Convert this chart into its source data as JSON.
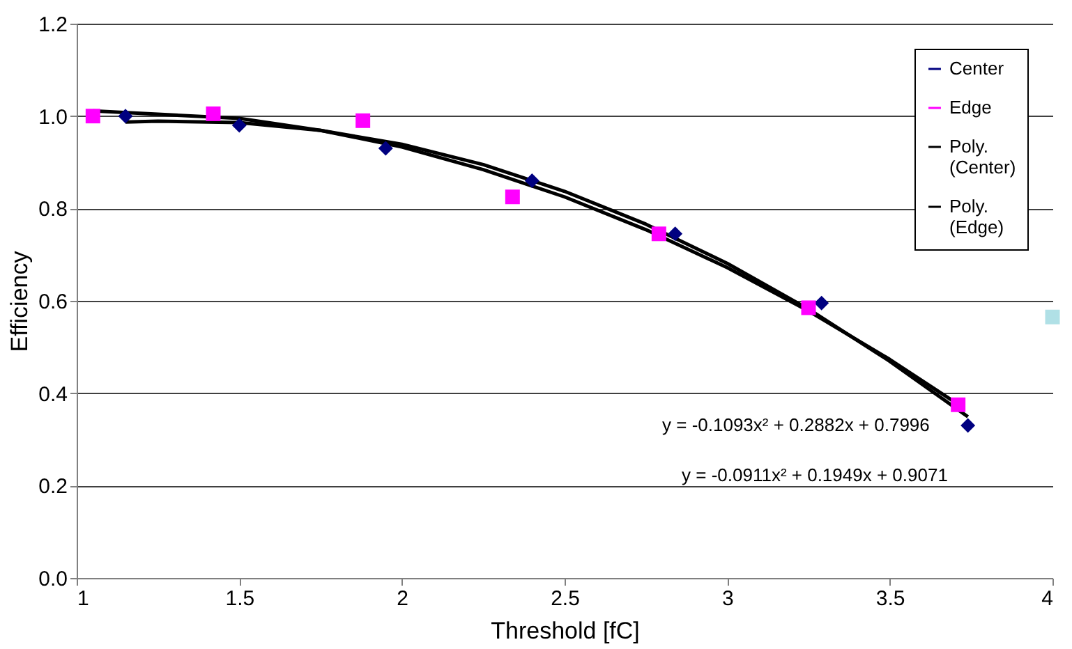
{
  "chart_data": {
    "type": "scatter",
    "xlabel": "Threshold  [fC]",
    "ylabel": "Efficiency",
    "xlim": [
      1,
      4
    ],
    "xticks": [
      1,
      1.5,
      2,
      2.5,
      3,
      3.5,
      4
    ],
    "ylim": [
      0,
      1.2
    ],
    "yticks": [
      {
        "value": 0,
        "label": "0.0"
      },
      {
        "value": 0.2,
        "label": "0.2"
      },
      {
        "value": 0.4,
        "label": "0.4"
      },
      {
        "value": 0.6,
        "label": "0.6"
      },
      {
        "value": 0.8,
        "label": "0.8"
      },
      {
        "value": 1,
        "label": "1.0"
      },
      {
        "value": 1.2,
        "label": "1.2"
      }
    ],
    "grid": "y",
    "legend": "top right",
    "annotations": [
      "y = -0.1093x² + 0.2882x + 0.7996",
      "y = -0.0911x² + 0.1949x + 0.9071"
    ],
    "series": [
      {
        "name": "Center",
        "marker": "diamond",
        "color": "#000080",
        "x": [
          1.15,
          1.5,
          1.95,
          2.4,
          2.84,
          3.29,
          3.74
        ],
        "values": [
          1.0,
          0.98,
          0.93,
          0.86,
          0.745,
          0.595,
          0.33
        ]
      },
      {
        "name": "Edge",
        "marker": "square",
        "color": "#ff00ff",
        "x": [
          1.05,
          1.42,
          1.88,
          2.34,
          2.79,
          3.25,
          3.71
        ],
        "values": [
          1.0,
          1.005,
          0.99,
          0.825,
          0.745,
          0.585,
          0.375
        ]
      },
      {
        "name": "Poly.\n(Center)",
        "type": "line",
        "color": "#000000",
        "x": [
          1.15,
          1.25,
          1.5,
          1.75,
          2,
          2.25,
          2.5,
          2.75,
          3,
          3.25,
          3.5,
          3.74
        ],
        "values": [
          0.987,
          0.989,
          0.986,
          0.969,
          0.939,
          0.895,
          0.837,
          0.766,
          0.681,
          0.582,
          0.469,
          0.349
        ]
      },
      {
        "name": "Poly.\n(Edge)",
        "type": "line",
        "color": "#000000",
        "x": [
          1.05,
          1.5,
          1.75,
          2,
          2.25,
          2.5,
          2.75,
          3,
          3.25,
          3.5,
          3.71
        ],
        "values": [
          1.011,
          0.995,
          0.969,
          0.933,
          0.884,
          0.825,
          0.754,
          0.672,
          0.578,
          0.473,
          0.376
        ]
      },
      {
        "type": "scatter",
        "marker": "square",
        "color": "#b0e0e6",
        "x": [
          4
        ],
        "values": [
          0.565
        ]
      }
    ]
  }
}
